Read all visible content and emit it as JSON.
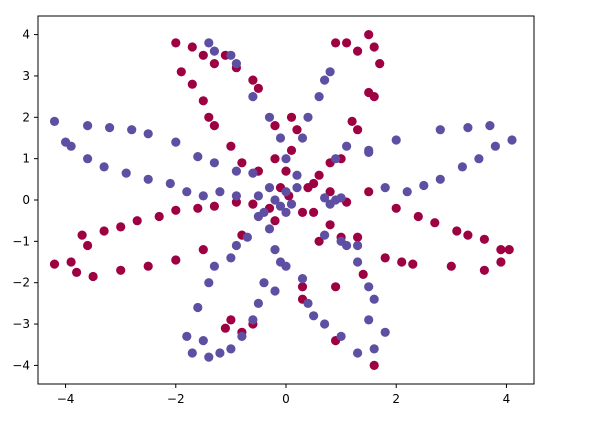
{
  "chart_data": {
    "type": "scatter",
    "title": "",
    "xlabel": "",
    "ylabel": "",
    "xlim": [
      -4.5,
      4.5
    ],
    "ylim": [
      -4.45,
      4.45
    ],
    "xticks": [
      -4,
      -2,
      0,
      2,
      4
    ],
    "yticks": [
      -4,
      -3,
      -2,
      -1,
      0,
      1,
      2,
      3,
      4
    ],
    "xtick_labels": [
      "−4",
      "−2",
      "0",
      "2",
      "4"
    ],
    "ytick_labels": [
      "−4",
      "−3",
      "−2",
      "−1",
      "0",
      "1",
      "2",
      "3",
      "4"
    ],
    "grid": false,
    "legend": false,
    "series": [
      {
        "color": "#9e0142",
        "points": [
          [
            -2.0,
            3.8
          ],
          [
            -1.7,
            3.7
          ],
          [
            -1.5,
            3.5
          ],
          [
            -1.3,
            3.3
          ],
          [
            -1.1,
            3.5
          ],
          [
            -0.9,
            3.2
          ],
          [
            -0.6,
            2.9
          ],
          [
            -0.5,
            2.7
          ],
          [
            -1.9,
            3.1
          ],
          [
            -1.7,
            2.8
          ],
          [
            -1.5,
            2.4
          ],
          [
            -1.4,
            2.0
          ],
          [
            -1.3,
            1.8
          ],
          [
            -1.0,
            1.3
          ],
          [
            -0.8,
            0.9
          ],
          [
            -0.5,
            0.7
          ],
          [
            -0.2,
            1.0
          ],
          [
            -0.2,
            1.8
          ],
          [
            0.1,
            2.0
          ],
          [
            0.2,
            1.7
          ],
          [
            0.1,
            1.2
          ],
          [
            0.0,
            0.7
          ],
          [
            -0.1,
            0.3
          ],
          [
            0.05,
            0.1
          ],
          [
            0.9,
            3.8
          ],
          [
            1.1,
            3.8
          ],
          [
            1.3,
            3.6
          ],
          [
            1.5,
            4.0
          ],
          [
            1.6,
            3.7
          ],
          [
            1.7,
            3.3
          ],
          [
            1.5,
            2.6
          ],
          [
            1.6,
            2.5
          ],
          [
            1.2,
            1.9
          ],
          [
            1.3,
            1.7
          ],
          [
            1.0,
            1.0
          ],
          [
            0.8,
            0.9
          ],
          [
            0.6,
            0.6
          ],
          [
            0.4,
            0.3
          ],
          [
            1.5,
            0.2
          ],
          [
            2.0,
            -0.2
          ],
          [
            2.4,
            -0.4
          ],
          [
            2.7,
            -0.55
          ],
          [
            3.1,
            -0.75
          ],
          [
            3.3,
            -0.85
          ],
          [
            3.6,
            -0.95
          ],
          [
            3.9,
            -1.2
          ],
          [
            1.3,
            -0.9
          ],
          [
            1.8,
            -1.4
          ],
          [
            2.1,
            -1.5
          ],
          [
            2.3,
            -1.55
          ],
          [
            3.0,
            -1.6
          ],
          [
            3.6,
            -1.7
          ],
          [
            3.9,
            -1.5
          ],
          [
            4.05,
            -1.2
          ],
          [
            0.5,
            0.4
          ],
          [
            0.8,
            0.2
          ],
          [
            1.1,
            -0.05
          ],
          [
            0.5,
            -0.3
          ],
          [
            0.8,
            -0.6
          ],
          [
            -0.3,
            -0.2
          ],
          [
            -0.6,
            -0.1
          ],
          [
            -0.9,
            -0.05
          ],
          [
            -1.3,
            -0.15
          ],
          [
            -1.6,
            -0.2
          ],
          [
            -2.0,
            -0.25
          ],
          [
            -2.3,
            -0.4
          ],
          [
            -2.7,
            -0.5
          ],
          [
            -3.0,
            -0.65
          ],
          [
            -3.3,
            -0.75
          ],
          [
            -3.7,
            -0.85
          ],
          [
            -3.6,
            -1.1
          ],
          [
            -3.9,
            -1.5
          ],
          [
            -4.2,
            -1.55
          ],
          [
            -0.8,
            -0.85
          ],
          [
            -1.5,
            -1.2
          ],
          [
            -2.0,
            -1.45
          ],
          [
            -2.5,
            -1.6
          ],
          [
            -3.0,
            -1.7
          ],
          [
            -3.5,
            -1.85
          ],
          [
            -3.8,
            -1.75
          ],
          [
            -0.2,
            -0.5
          ],
          [
            0.3,
            -0.3
          ],
          [
            0.6,
            -1.0
          ],
          [
            1.0,
            -0.9
          ],
          [
            1.4,
            -1.8
          ],
          [
            0.9,
            -2.1
          ],
          [
            0.3,
            -2.1
          ],
          [
            0.3,
            -2.4
          ],
          [
            -1.0,
            -2.9
          ],
          [
            -1.1,
            -3.1
          ],
          [
            -0.6,
            -3.0
          ],
          [
            -0.8,
            -3.2
          ],
          [
            0.9,
            -3.4
          ],
          [
            1.6,
            -4.0
          ]
        ]
      },
      {
        "color": "#5e4fa2",
        "points": [
          [
            -1.4,
            3.8
          ],
          [
            -1.3,
            3.6
          ],
          [
            -1.0,
            3.5
          ],
          [
            -0.9,
            3.3
          ],
          [
            -0.6,
            2.5
          ],
          [
            -0.3,
            2.0
          ],
          [
            -0.1,
            1.5
          ],
          [
            0.0,
            1.0
          ],
          [
            0.2,
            0.6
          ],
          [
            0.0,
            0.2
          ],
          [
            0.1,
            -0.1
          ],
          [
            -0.1,
            -0.15
          ],
          [
            0.2,
            0.3
          ],
          [
            0.3,
            1.5
          ],
          [
            0.4,
            2.0
          ],
          [
            0.6,
            2.5
          ],
          [
            0.7,
            2.9
          ],
          [
            0.8,
            3.1
          ],
          [
            0.9,
            1.0
          ],
          [
            1.1,
            1.3
          ],
          [
            1.5,
            1.2
          ],
          [
            1.8,
            0.3
          ],
          [
            2.2,
            0.2
          ],
          [
            2.5,
            0.35
          ],
          [
            2.8,
            0.5
          ],
          [
            3.2,
            0.8
          ],
          [
            3.5,
            1.0
          ],
          [
            3.8,
            1.3
          ],
          [
            4.1,
            1.45
          ],
          [
            3.7,
            1.8
          ],
          [
            3.3,
            1.75
          ],
          [
            2.8,
            1.7
          ],
          [
            2.0,
            1.45
          ],
          [
            1.5,
            1.15
          ],
          [
            0.7,
            0.05
          ],
          [
            0.9,
            0.0
          ],
          [
            1.0,
            0.05
          ],
          [
            0.8,
            -0.1
          ],
          [
            0.7,
            -0.85
          ],
          [
            1.0,
            -1.0
          ],
          [
            1.3,
            -1.1
          ],
          [
            -0.3,
            -0.7
          ],
          [
            -0.2,
            -1.2
          ],
          [
            -0.1,
            -1.5
          ],
          [
            0.0,
            -1.6
          ],
          [
            0.3,
            -1.9
          ],
          [
            0.4,
            -2.5
          ],
          [
            0.5,
            -2.8
          ],
          [
            0.7,
            -3.0
          ],
          [
            1.0,
            -3.3
          ],
          [
            1.3,
            -3.7
          ],
          [
            1.6,
            -3.6
          ],
          [
            1.8,
            -3.2
          ],
          [
            1.5,
            -2.9
          ],
          [
            1.6,
            -2.4
          ],
          [
            1.5,
            -2.1
          ],
          [
            1.3,
            -1.5
          ],
          [
            1.1,
            -1.1
          ],
          [
            -0.2,
            -2.2
          ],
          [
            -0.4,
            -2.0
          ],
          [
            -0.5,
            -2.5
          ],
          [
            -0.6,
            -2.9
          ],
          [
            -0.8,
            -3.3
          ],
          [
            -1.0,
            -3.6
          ],
          [
            -1.2,
            -3.7
          ],
          [
            -1.4,
            -3.8
          ],
          [
            -1.5,
            -3.4
          ],
          [
            -1.7,
            -3.7
          ],
          [
            -1.8,
            -3.3
          ],
          [
            -1.6,
            -2.6
          ],
          [
            -1.4,
            -2.0
          ],
          [
            -1.3,
            -1.6
          ],
          [
            -1.0,
            -1.4
          ],
          [
            -0.9,
            -1.1
          ],
          [
            -0.7,
            -0.9
          ],
          [
            -0.5,
            -0.4
          ],
          [
            -0.4,
            -0.3
          ],
          [
            -0.5,
            0.1
          ],
          [
            -0.9,
            0.1
          ],
          [
            -1.2,
            0.2
          ],
          [
            -1.5,
            0.1
          ],
          [
            -1.8,
            0.2
          ],
          [
            -2.1,
            0.4
          ],
          [
            -2.5,
            0.5
          ],
          [
            -2.9,
            0.65
          ],
          [
            -3.3,
            0.8
          ],
          [
            -3.6,
            1.0
          ],
          [
            -3.9,
            1.3
          ],
          [
            -4.0,
            1.4
          ],
          [
            -4.2,
            1.9
          ],
          [
            -3.6,
            1.8
          ],
          [
            -3.2,
            1.75
          ],
          [
            -2.8,
            1.7
          ],
          [
            -2.5,
            1.6
          ],
          [
            -2.0,
            1.4
          ],
          [
            -1.6,
            1.05
          ],
          [
            -1.3,
            0.9
          ],
          [
            -0.9,
            0.7
          ],
          [
            -0.6,
            0.65
          ],
          [
            -0.3,
            0.3
          ],
          [
            -0.2,
            0.0
          ],
          [
            0.0,
            -0.3
          ]
        ]
      }
    ]
  },
  "colors": {
    "class_0": "#9e0142",
    "class_1": "#5e4fa2",
    "axes": "#000000",
    "background": "#ffffff"
  }
}
